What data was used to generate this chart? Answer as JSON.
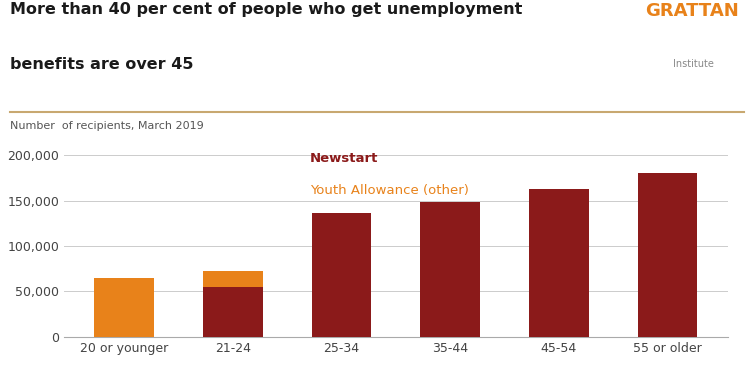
{
  "title_line1": "More than 40 per cent of people who get unemployment",
  "title_line2": "benefits are over 45",
  "subtitle": "Number  of recipients, March 2019",
  "categories": [
    "20 or younger",
    "21-24",
    "25-34",
    "35-44",
    "45-54",
    "55 or older"
  ],
  "newstart_values": [
    0,
    55000,
    136000,
    149000,
    163000,
    181000
  ],
  "youth_allowance_values": [
    65000,
    18000,
    0,
    0,
    0,
    0
  ],
  "newstart_color": "#8B1A1A",
  "youth_color": "#E8821A",
  "legend_newstart": "Newstart",
  "legend_youth": "Youth Allowance (other)",
  "ylim": [
    0,
    210000
  ],
  "yticks": [
    0,
    50000,
    100000,
    150000,
    200000
  ],
  "grattan_text": "GRATTAN",
  "institute_text": "Institute",
  "background_color": "#FFFFFF",
  "title_color": "#1A1A1A",
  "subtitle_color": "#555555",
  "grattan_color": "#E8821A",
  "institute_color": "#888888",
  "title_separator_color": "#C8A870",
  "grid_color": "#CCCCCC",
  "axis_color": "#AAAAAA"
}
